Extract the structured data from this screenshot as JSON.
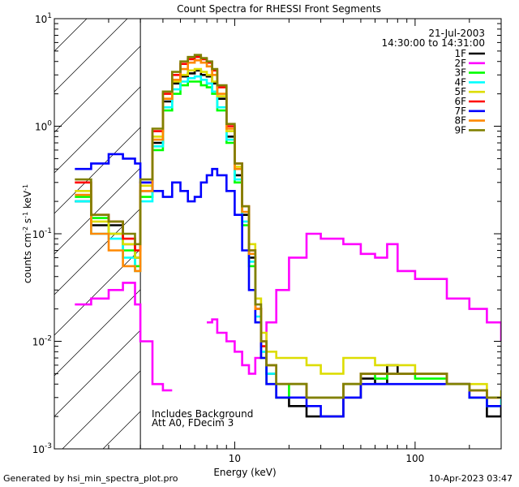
{
  "chart_data": {
    "type": "line",
    "title": "Count Spectra for RHESSI Front Segments",
    "xlabel": "Energy (keV)",
    "ylabel": "counts cm^-2 s^-1 keV^-1",
    "xscale": "log",
    "yscale": "log",
    "xlim": [
      1,
      300
    ],
    "ylim": [
      0.001,
      10
    ],
    "x_ticks": [
      {
        "value": 10,
        "label": "10"
      },
      {
        "value": 100,
        "label": "100"
      }
    ],
    "y_ticks": [
      {
        "value": 10,
        "label": "10^1"
      },
      {
        "value": 1,
        "label": "10^0"
      },
      {
        "value": 0.1,
        "label": "10^-1"
      },
      {
        "value": 0.01,
        "label": "10^-2"
      },
      {
        "value": 0.001,
        "label": "10^-3"
      }
    ],
    "hatched_region": [
      1,
      3
    ],
    "date": "21-Jul-2003",
    "time_range": "14:30:00 to 14:31:00",
    "annotations": [
      "Includes Background",
      "Att A0, FDecim 3"
    ],
    "x": [
      1.3,
      1.6,
      2.0,
      2.4,
      2.8,
      3.0,
      3.5,
      4.0,
      4.5,
      5.0,
      5.5,
      6.0,
      6.5,
      7.0,
      7.5,
      8.0,
      9.0,
      10.0,
      11.0,
      12.0,
      13.0,
      14.0,
      15.0,
      17.0,
      20.0,
      25.0,
      30.0,
      40.0,
      50.0,
      60.0,
      70.0,
      80.0,
      100.0,
      150.0,
      200.0,
      250.0,
      300.0
    ],
    "series": [
      {
        "name": "1F",
        "color": "#000000",
        "values": [
          0.2,
          0.12,
          0.12,
          0.08,
          0.06,
          0.25,
          0.7,
          1.7,
          2.5,
          2.9,
          3.1,
          3.3,
          3.0,
          2.9,
          2.5,
          1.8,
          0.8,
          0.35,
          0.15,
          0.06,
          0.02,
          0.008,
          0.005,
          0.003,
          0.0025,
          0.002,
          0.002,
          0.003,
          0.0045,
          0.004,
          0.006,
          0.005,
          0.005,
          0.004,
          0.003,
          0.002,
          0.0025
        ]
      },
      {
        "name": "2F",
        "color": "#ff00ff",
        "values": [
          0.022,
          0.025,
          0.03,
          0.035,
          0.022,
          0.01,
          0.004,
          0.0035,
          null,
          null,
          null,
          null,
          null,
          0.015,
          0.016,
          0.012,
          0.01,
          0.008,
          0.006,
          0.005,
          0.007,
          0.01,
          0.015,
          0.03,
          0.06,
          0.1,
          0.09,
          0.08,
          0.065,
          0.06,
          0.08,
          0.045,
          0.038,
          0.025,
          0.02,
          0.015,
          0.01
        ]
      },
      {
        "name": "3F",
        "color": "#00ff00",
        "values": [
          0.22,
          0.14,
          0.1,
          0.07,
          0.05,
          0.22,
          0.6,
          1.4,
          2.0,
          2.4,
          2.6,
          2.6,
          2.4,
          2.3,
          2.0,
          1.4,
          0.7,
          0.3,
          0.12,
          0.05,
          0.015,
          0.007,
          0.004,
          0.003,
          0.004,
          0.003,
          0.003,
          0.004,
          0.005,
          0.0045,
          0.005,
          0.005,
          0.0045,
          0.004,
          0.003,
          0.0025,
          0.0025
        ]
      },
      {
        "name": "4F",
        "color": "#00ffff",
        "values": [
          0.2,
          0.1,
          0.09,
          0.06,
          0.045,
          0.2,
          0.65,
          1.5,
          2.2,
          2.6,
          2.8,
          2.9,
          2.7,
          2.5,
          2.1,
          1.5,
          0.75,
          0.32,
          0.13,
          0.055,
          0.017,
          0.008,
          0.005,
          0.004,
          0.004,
          0.003,
          0.003,
          0.004,
          0.005,
          0.005,
          0.005,
          0.005,
          0.005,
          0.004,
          0.003,
          0.0025,
          0.003
        ]
      },
      {
        "name": "5F",
        "color": "#dddd00",
        "values": [
          0.25,
          0.13,
          0.1,
          0.08,
          0.06,
          0.28,
          0.8,
          1.8,
          2.6,
          3.0,
          3.3,
          3.4,
          3.2,
          3.0,
          2.6,
          1.9,
          0.9,
          0.42,
          0.18,
          0.08,
          0.025,
          0.012,
          0.008,
          0.007,
          0.007,
          0.006,
          0.005,
          0.007,
          0.007,
          0.006,
          0.006,
          0.006,
          0.005,
          0.004,
          0.004,
          0.003,
          0.0035
        ]
      },
      {
        "name": "6F",
        "color": "#ff0000",
        "values": [
          0.3,
          0.15,
          0.13,
          0.09,
          0.07,
          0.3,
          0.9,
          2.0,
          3.0,
          3.8,
          4.2,
          4.4,
          4.2,
          3.9,
          3.3,
          2.3,
          1.0,
          0.45,
          0.18,
          0.07,
          0.02,
          0.009,
          0.006,
          0.004,
          0.004,
          0.003,
          0.003,
          0.004,
          0.005,
          0.005,
          0.005,
          0.005,
          0.005,
          0.004,
          0.0035,
          0.003,
          0.003
        ]
      },
      {
        "name": "7F",
        "color": "#0000ff",
        "values": [
          0.4,
          0.45,
          0.55,
          0.5,
          0.45,
          0.3,
          0.25,
          0.22,
          0.3,
          0.25,
          0.2,
          0.22,
          0.3,
          0.35,
          0.4,
          0.35,
          0.25,
          0.15,
          0.07,
          0.03,
          0.015,
          0.007,
          0.004,
          0.003,
          0.003,
          0.0025,
          0.002,
          0.003,
          0.004,
          0.004,
          0.004,
          0.004,
          0.004,
          0.004,
          0.003,
          0.0025,
          0.0025
        ]
      },
      {
        "name": "8F",
        "color": "#ff8800",
        "values": [
          0.23,
          0.1,
          0.07,
          0.05,
          0.045,
          0.25,
          0.75,
          1.8,
          2.7,
          3.4,
          3.9,
          4.1,
          3.9,
          3.6,
          3.0,
          2.0,
          0.95,
          0.4,
          0.16,
          0.065,
          0.02,
          0.01,
          0.006,
          0.004,
          0.004,
          0.003,
          0.003,
          0.004,
          0.005,
          0.005,
          0.005,
          0.005,
          0.005,
          0.004,
          0.0035,
          0.003,
          0.003
        ]
      },
      {
        "name": "9F",
        "color": "#808000",
        "values": [
          0.32,
          0.15,
          0.13,
          0.1,
          0.08,
          0.32,
          0.95,
          2.1,
          3.2,
          4.0,
          4.4,
          4.6,
          4.3,
          4.0,
          3.4,
          2.4,
          1.05,
          0.45,
          0.18,
          0.07,
          0.022,
          0.01,
          0.006,
          0.004,
          0.004,
          0.003,
          0.003,
          0.004,
          0.005,
          0.005,
          0.005,
          0.005,
          0.005,
          0.004,
          0.0035,
          0.003,
          0.003
        ]
      }
    ]
  },
  "footer": {
    "left": "Generated by hsi_min_spectra_plot.pro",
    "right": "10-Apr-2023 03:47"
  }
}
